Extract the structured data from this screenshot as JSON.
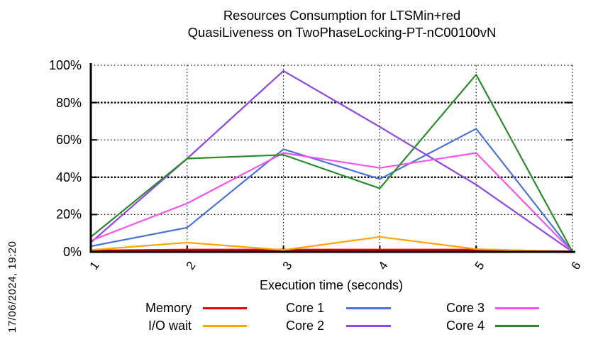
{
  "timestamp": "17/06/2024, 19:20",
  "chart_data": {
    "type": "line",
    "title_line1": "Resources Consumption for LTSMin+red",
    "title_line2": "QuasiLiveness on TwoPhaseLocking-PT-nC00100vN",
    "xlabel": "Execution time (seconds)",
    "x": [
      1,
      2,
      3,
      4,
      5,
      6
    ],
    "x_tick_labels": [
      "1",
      "2",
      "3",
      "4",
      "5",
      "6"
    ],
    "y_tick_labels": [
      "100%",
      "80%",
      "60%",
      "40%",
      "20%",
      "0%"
    ],
    "xlim": [
      1,
      6
    ],
    "ylim": [
      0,
      100
    ],
    "grid": true,
    "legend_position": "bottom",
    "series": [
      {
        "name": "Memory",
        "color": "#e60000",
        "width": 3.5,
        "values": [
          0.5,
          1,
          1,
          1,
          1,
          0
        ]
      },
      {
        "name": "I/O wait",
        "color": "#ffa500",
        "width": 2.2,
        "values": [
          1,
          5,
          1,
          8,
          1.5,
          0
        ]
      },
      {
        "name": "Core 1",
        "color": "#4a73d8",
        "width": 2.2,
        "values": [
          3,
          13,
          55,
          39,
          66,
          0
        ]
      },
      {
        "name": "Core 2",
        "color": "#8f46e4",
        "width": 2.2,
        "values": [
          5,
          50,
          97,
          67,
          36,
          0
        ]
      },
      {
        "name": "Core 3",
        "color": "#f653ee",
        "width": 2.2,
        "values": [
          6,
          26,
          53,
          45,
          53,
          0
        ]
      },
      {
        "name": "Core 4",
        "color": "#2a8b2a",
        "width": 2.2,
        "values": [
          8,
          50,
          52,
          34,
          95,
          0
        ]
      }
    ]
  }
}
